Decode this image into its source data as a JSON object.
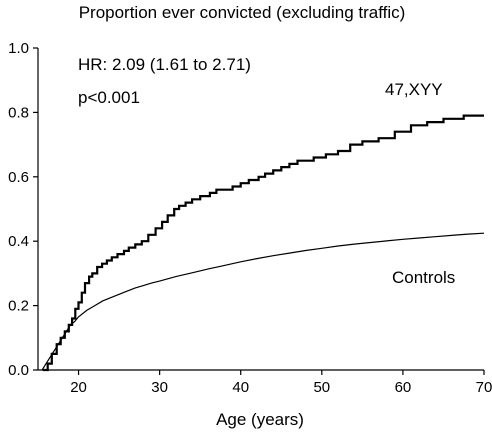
{
  "chart_data": {
    "type": "line",
    "title": "Proportion ever convicted (excluding traffic)",
    "xlabel": "Age (years)",
    "ylabel": "",
    "xlim": [
      15,
      70
    ],
    "ylim": [
      0,
      1
    ],
    "x_ticks": [
      20,
      30,
      40,
      50,
      60,
      70
    ],
    "y_ticks": [
      0.0,
      0.2,
      0.4,
      0.6,
      0.8,
      1.0
    ],
    "y_tick_labels": [
      "0.0",
      "0.2",
      "0.4",
      "0.6",
      "0.8",
      "1.0"
    ],
    "step": true,
    "grid": false,
    "annotations": [
      {
        "text": "HR: 2.09 (1.61 to 2.71)"
      },
      {
        "text": "p<0.001"
      }
    ],
    "series": [
      {
        "name": "47,XYY",
        "x": [
          15.6,
          16.2,
          16.7,
          17.3,
          17.8,
          18.3,
          18.8,
          19.2,
          19.6,
          20.0,
          20.4,
          20.8,
          21.3,
          21.7,
          22.3,
          22.9,
          23.5,
          24.1,
          24.8,
          25.6,
          26.2,
          27.0,
          27.8,
          28.6,
          29.5,
          30.3,
          31.0,
          31.8,
          32.4,
          33.2,
          34.0,
          35.0,
          36.2,
          37.0,
          38.0,
          39.0,
          40.0,
          41.0,
          42.2,
          43.0,
          44.0,
          45.0,
          46.0,
          47.0,
          48.0,
          49.0,
          50.5,
          52.0,
          53.5,
          55.0,
          57.0,
          59.0,
          61.0,
          63.0,
          65.0,
          67.5,
          69.0,
          70.0
        ],
        "values": [
          0.0,
          0.02,
          0.05,
          0.08,
          0.1,
          0.12,
          0.14,
          0.16,
          0.19,
          0.21,
          0.24,
          0.27,
          0.29,
          0.3,
          0.32,
          0.33,
          0.34,
          0.35,
          0.36,
          0.37,
          0.38,
          0.39,
          0.4,
          0.42,
          0.44,
          0.46,
          0.48,
          0.5,
          0.51,
          0.52,
          0.53,
          0.54,
          0.55,
          0.56,
          0.56,
          0.57,
          0.58,
          0.59,
          0.6,
          0.61,
          0.62,
          0.63,
          0.64,
          0.65,
          0.65,
          0.66,
          0.67,
          0.68,
          0.7,
          0.71,
          0.72,
          0.74,
          0.76,
          0.77,
          0.78,
          0.79,
          0.79,
          0.79
        ]
      },
      {
        "name": "Controls",
        "x": [
          15.5,
          16,
          16.5,
          17,
          17.5,
          18,
          18.5,
          19,
          19.5,
          20,
          21,
          22,
          23,
          24,
          25,
          26,
          27,
          28,
          29,
          30,
          32,
          34,
          36,
          38,
          40,
          42,
          44,
          46,
          48,
          50,
          52,
          54,
          56,
          58,
          60,
          62,
          64,
          66,
          68,
          70
        ],
        "values": [
          0.0,
          0.02,
          0.04,
          0.06,
          0.08,
          0.1,
          0.12,
          0.14,
          0.15,
          0.165,
          0.185,
          0.2,
          0.215,
          0.225,
          0.235,
          0.245,
          0.255,
          0.262,
          0.27,
          0.276,
          0.29,
          0.302,
          0.314,
          0.325,
          0.336,
          0.346,
          0.355,
          0.363,
          0.371,
          0.378,
          0.385,
          0.391,
          0.396,
          0.401,
          0.406,
          0.41,
          0.414,
          0.418,
          0.422,
          0.425
        ]
      }
    ]
  }
}
